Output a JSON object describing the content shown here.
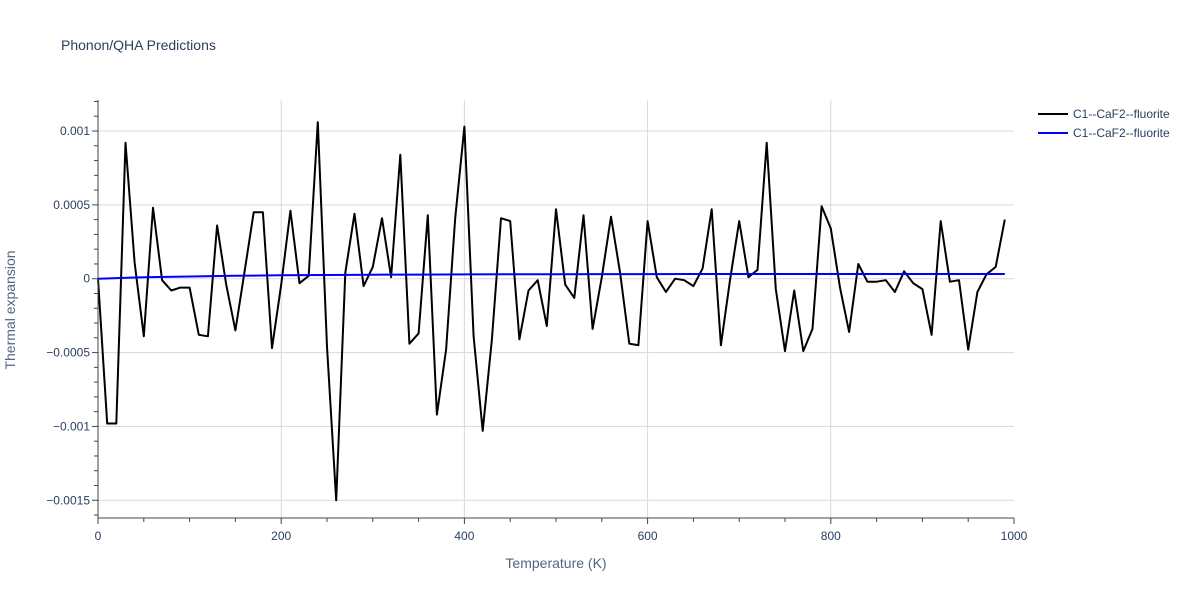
{
  "chart_data": {
    "type": "line",
    "title": "Phonon/QHA Predictions",
    "xlabel": "Temperature (K)",
    "ylabel": "Thermal expansion",
    "xlim": [
      0,
      1000
    ],
    "ylim": [
      -0.00162,
      0.00121
    ],
    "x_ticks": [
      0,
      200,
      400,
      600,
      800,
      1000
    ],
    "x_tick_labels": [
      "0",
      "200",
      "400",
      "600",
      "800",
      "1000"
    ],
    "y_ticks": [
      -0.0015,
      -0.001,
      -0.0005,
      0,
      0.0005,
      0.001
    ],
    "y_tick_labels": [
      "−0.0015",
      "−0.001",
      "−0.0005",
      "0",
      "0.0005",
      "0.001"
    ],
    "grid": true,
    "legend_position": "top-right",
    "series": [
      {
        "name": "C1--CaF2--fluorite",
        "color": "#000000",
        "x": [
          0,
          10,
          20,
          30,
          40,
          50,
          60,
          70,
          80,
          90,
          100,
          110,
          120,
          130,
          140,
          150,
          160,
          170,
          180,
          190,
          200,
          210,
          220,
          230,
          240,
          250,
          260,
          270,
          280,
          290,
          300,
          310,
          320,
          330,
          340,
          350,
          360,
          370,
          380,
          390,
          400,
          410,
          420,
          430,
          440,
          450,
          460,
          470,
          480,
          490,
          500,
          510,
          520,
          530,
          540,
          550,
          560,
          570,
          580,
          590,
          600,
          610,
          620,
          630,
          640,
          650,
          660,
          670,
          680,
          690,
          700,
          710,
          720,
          730,
          740,
          750,
          760,
          770,
          780,
          790,
          800,
          810,
          820,
          830,
          840,
          850,
          860,
          870,
          880,
          890,
          900,
          910,
          920,
          930,
          940,
          950,
          960,
          970,
          980,
          990
        ],
        "y": [
          0,
          -0.00098,
          -0.00098,
          0.00092,
          0.00011,
          -0.00039,
          0.00048,
          -1e-05,
          -8e-05,
          -6e-05,
          -6e-05,
          -0.00038,
          -0.00039,
          0.00036,
          -4e-05,
          -0.00035,
          5e-05,
          0.00045,
          0.00045,
          -0.00047,
          -4e-05,
          0.00046,
          -3e-05,
          2e-05,
          0.00106,
          -0.00046,
          -0.0015,
          4e-05,
          0.00044,
          -5e-05,
          8e-05,
          0.00041,
          1e-05,
          0.00084,
          -0.00044,
          -0.00037,
          0.00043,
          -0.00092,
          -0.00048,
          0.00041,
          0.00103,
          -0.00039,
          -0.00103,
          -0.00041,
          0.00041,
          0.00039,
          -0.00041,
          -8e-05,
          -1e-05,
          -0.00032,
          0.00047,
          -4e-05,
          -0.00013,
          0.00043,
          -0.00034,
          1e-05,
          0.00042,
          4e-05,
          -0.00044,
          -0.00045,
          0.00039,
          1e-05,
          -9e-05,
          0,
          -1e-05,
          -5e-05,
          7e-05,
          0.00047,
          -0.00045,
          -1e-05,
          0.00039,
          1e-05,
          6e-05,
          0.00092,
          -7e-05,
          -0.00049,
          -8e-05,
          -0.00049,
          -0.00034,
          0.00049,
          0.00034,
          -6e-05,
          -0.00036,
          0.0001,
          -2e-05,
          -2e-05,
          -1e-05,
          -9e-05,
          5e-05,
          -3e-05,
          -7e-05,
          -0.00038,
          0.00039,
          -2e-05,
          -1e-05,
          -0.00048,
          -9e-05,
          3e-05,
          8e-05,
          0.0004
        ]
      },
      {
        "name": "C1--CaF2--fluorite",
        "color": "#0000ff",
        "x": [
          0,
          50,
          100,
          150,
          200,
          250,
          300,
          350,
          400,
          450,
          500,
          550,
          600,
          650,
          700,
          750,
          800,
          850,
          900,
          950,
          990
        ],
        "y": [
          0,
          1e-05,
          1.5e-05,
          2e-05,
          2.3e-05,
          2.5e-05,
          2.7e-05,
          2.8e-05,
          2.9e-05,
          3e-05,
          3e-05,
          3.1e-05,
          3.1e-05,
          3.2e-05,
          3.2e-05,
          3.2e-05,
          3.2e-05,
          3.2e-05,
          3.2e-05,
          3.2e-05,
          3.2e-05
        ]
      }
    ]
  }
}
